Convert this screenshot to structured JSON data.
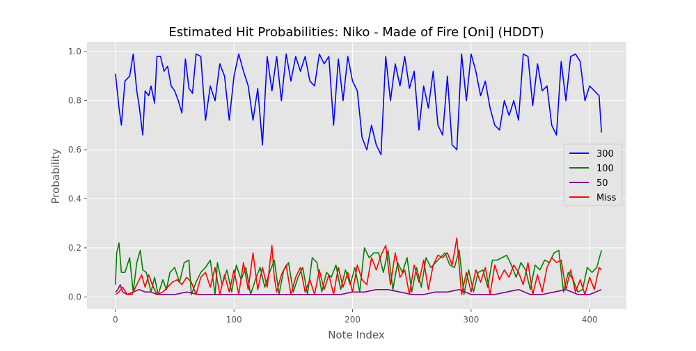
{
  "chart_data": {
    "type": "line",
    "title": "Estimated Hit Probabilities: Niko - Made of Fire [Oni] (HDDT)",
    "xlabel": "Note Index",
    "ylabel": "Probability",
    "xlim": [
      -24,
      431
    ],
    "ylim": [
      -0.05,
      1.04
    ],
    "xticks": [
      0,
      100,
      200,
      300,
      400
    ],
    "yticks": [
      0.0,
      0.2,
      0.4,
      0.6,
      0.8,
      1.0
    ],
    "xtick_labels": [
      "0",
      "100",
      "200",
      "300",
      "400"
    ],
    "ytick_labels": [
      "0.0",
      "0.2",
      "0.4",
      "0.6",
      "0.8",
      "1.0"
    ],
    "grid": true,
    "legend_position": "center-right",
    "background": "#e5e5e5",
    "series": [
      {
        "name": "300",
        "color": "#0000ff",
        "x": [
          0,
          3,
          5,
          8,
          12,
          15,
          18,
          20,
          23,
          25,
          28,
          30,
          33,
          35,
          38,
          41,
          44,
          47,
          50,
          53,
          56,
          59,
          62,
          65,
          68,
          72,
          76,
          80,
          84,
          88,
          92,
          96,
          100,
          104,
          108,
          112,
          116,
          120,
          124,
          128,
          132,
          136,
          140,
          144,
          148,
          152,
          156,
          160,
          164,
          168,
          172,
          176,
          180,
          184,
          188,
          192,
          196,
          200,
          204,
          208,
          212,
          216,
          220,
          224,
          228,
          232,
          236,
          240,
          244,
          248,
          252,
          256,
          260,
          264,
          268,
          272,
          276,
          280,
          284,
          288,
          292,
          296,
          300,
          304,
          308,
          312,
          316,
          320,
          324,
          328,
          332,
          336,
          340,
          344,
          348,
          352,
          356,
          360,
          364,
          368,
          372,
          376,
          380,
          384,
          388,
          392,
          396,
          400,
          404,
          408,
          410
        ],
        "values": [
          0.91,
          0.77,
          0.7,
          0.88,
          0.9,
          0.99,
          0.84,
          0.78,
          0.66,
          0.84,
          0.82,
          0.86,
          0.79,
          0.98,
          0.98,
          0.92,
          0.94,
          0.86,
          0.84,
          0.8,
          0.75,
          0.97,
          0.85,
          0.83,
          0.99,
          0.98,
          0.72,
          0.86,
          0.8,
          0.95,
          0.9,
          0.72,
          0.9,
          0.99,
          0.92,
          0.86,
          0.72,
          0.85,
          0.62,
          0.98,
          0.84,
          0.98,
          0.8,
          0.99,
          0.88,
          0.98,
          0.92,
          0.98,
          0.88,
          0.86,
          0.99,
          0.95,
          0.98,
          0.7,
          0.97,
          0.8,
          0.98,
          0.88,
          0.84,
          0.65,
          0.6,
          0.7,
          0.62,
          0.58,
          0.98,
          0.8,
          0.95,
          0.86,
          0.98,
          0.85,
          0.92,
          0.68,
          0.86,
          0.77,
          0.92,
          0.7,
          0.66,
          0.9,
          0.62,
          0.6,
          0.99,
          0.8,
          0.99,
          0.92,
          0.82,
          0.88,
          0.77,
          0.7,
          0.68,
          0.8,
          0.74,
          0.8,
          0.72,
          0.99,
          0.98,
          0.78,
          0.95,
          0.84,
          0.86,
          0.7,
          0.66,
          0.96,
          0.8,
          0.98,
          0.99,
          0.96,
          0.8,
          0.86,
          0.84,
          0.82,
          0.67
        ]
      },
      {
        "name": "100",
        "color": "#008000",
        "x": [
          0,
          1,
          3,
          5,
          8,
          12,
          15,
          18,
          21,
          23,
          26,
          30,
          33,
          36,
          40,
          43,
          46,
          50,
          54,
          58,
          62,
          64,
          68,
          72,
          76,
          80,
          84,
          86,
          90,
          94,
          98,
          102,
          106,
          110,
          114,
          118,
          122,
          126,
          130,
          134,
          138,
          142,
          146,
          150,
          154,
          158,
          162,
          166,
          170,
          174,
          178,
          182,
          186,
          190,
          194,
          198,
          202,
          206,
          210,
          214,
          218,
          222,
          226,
          230,
          234,
          238,
          242,
          246,
          250,
          254,
          258,
          262,
          266,
          270,
          274,
          278,
          282,
          286,
          290,
          294,
          298,
          302,
          306,
          310,
          314,
          318,
          322,
          326,
          330,
          334,
          338,
          342,
          346,
          350,
          354,
          358,
          362,
          366,
          370,
          374,
          378,
          382,
          386,
          390,
          394,
          398,
          402,
          406,
          410
        ],
        "values": [
          0.05,
          0.18,
          0.22,
          0.1,
          0.1,
          0.16,
          0.02,
          0.14,
          0.19,
          0.11,
          0.1,
          0.02,
          0.08,
          0.01,
          0.07,
          0.03,
          0.1,
          0.12,
          0.06,
          0.14,
          0.15,
          0.01,
          0.06,
          0.1,
          0.12,
          0.15,
          0.01,
          0.14,
          0.05,
          0.11,
          0.02,
          0.13,
          0.07,
          0.12,
          0.01,
          0.07,
          0.12,
          0.04,
          0.1,
          0.15,
          0.01,
          0.11,
          0.14,
          0.02,
          0.08,
          0.12,
          0.01,
          0.16,
          0.14,
          0.02,
          0.1,
          0.08,
          0.13,
          0.03,
          0.11,
          0.05,
          0.12,
          0.02,
          0.2,
          0.16,
          0.18,
          0.18,
          0.1,
          0.19,
          0.03,
          0.14,
          0.1,
          0.16,
          0.02,
          0.12,
          0.04,
          0.16,
          0.12,
          0.14,
          0.16,
          0.18,
          0.13,
          0.12,
          0.19,
          0.01,
          0.11,
          0.02,
          0.1,
          0.11,
          0.04,
          0.15,
          0.15,
          0.16,
          0.17,
          0.13,
          0.08,
          0.14,
          0.11,
          0.03,
          0.13,
          0.11,
          0.15,
          0.14,
          0.18,
          0.19,
          0.02,
          0.1,
          0.07,
          0.02,
          0.03,
          0.12,
          0.1,
          0.12,
          0.19
        ]
      },
      {
        "name": "50",
        "color": "#800080",
        "x": [
          0,
          2,
          4,
          6,
          10,
          15,
          20,
          25,
          30,
          35,
          40,
          50,
          60,
          70,
          80,
          90,
          100,
          110,
          120,
          130,
          140,
          150,
          160,
          170,
          180,
          190,
          200,
          210,
          220,
          230,
          240,
          250,
          260,
          270,
          280,
          290,
          300,
          310,
          320,
          330,
          340,
          350,
          360,
          370,
          380,
          390,
          400,
          410
        ],
        "values": [
          0.02,
          0.03,
          0.05,
          0.02,
          0.01,
          0.02,
          0.03,
          0.02,
          0.02,
          0.01,
          0.01,
          0.01,
          0.02,
          0.01,
          0.01,
          0.01,
          0.01,
          0.01,
          0.01,
          0.01,
          0.01,
          0.01,
          0.01,
          0.01,
          0.01,
          0.01,
          0.02,
          0.02,
          0.03,
          0.03,
          0.02,
          0.01,
          0.01,
          0.02,
          0.02,
          0.03,
          0.01,
          0.01,
          0.01,
          0.02,
          0.03,
          0.01,
          0.01,
          0.02,
          0.03,
          0.01,
          0.01,
          0.03
        ]
      },
      {
        "name": "Miss",
        "color": "#ff0000",
        "x": [
          0,
          3,
          6,
          10,
          14,
          18,
          22,
          25,
          28,
          31,
          35,
          40,
          44,
          48,
          52,
          56,
          60,
          64,
          68,
          72,
          76,
          80,
          84,
          88,
          92,
          96,
          100,
          104,
          108,
          112,
          116,
          120,
          124,
          128,
          132,
          134,
          136,
          140,
          144,
          148,
          152,
          156,
          160,
          164,
          168,
          172,
          176,
          180,
          184,
          188,
          192,
          196,
          200,
          204,
          208,
          212,
          216,
          220,
          224,
          228,
          232,
          236,
          240,
          244,
          248,
          252,
          256,
          260,
          264,
          268,
          272,
          276,
          280,
          284,
          288,
          292,
          296,
          300,
          304,
          308,
          312,
          316,
          320,
          324,
          328,
          332,
          336,
          340,
          344,
          348,
          352,
          356,
          360,
          364,
          368,
          372,
          376,
          380,
          384,
          388,
          392,
          396,
          400,
          404,
          408,
          410
        ],
        "values": [
          0.01,
          0.02,
          0.04,
          0.01,
          0.01,
          0.05,
          0.09,
          0.04,
          0.09,
          0.05,
          0.01,
          0.02,
          0.04,
          0.06,
          0.07,
          0.05,
          0.08,
          0.06,
          0.01,
          0.08,
          0.1,
          0.04,
          0.12,
          0.01,
          0.09,
          0.02,
          0.11,
          0.01,
          0.14,
          0.03,
          0.18,
          0.03,
          0.12,
          0.04,
          0.21,
          0.08,
          0.02,
          0.09,
          0.13,
          0.01,
          0.08,
          0.12,
          0.02,
          0.07,
          0.01,
          0.11,
          0.03,
          0.09,
          0.01,
          0.12,
          0.04,
          0.1,
          0.02,
          0.13,
          0.07,
          0.05,
          0.16,
          0.11,
          0.17,
          0.21,
          0.05,
          0.18,
          0.08,
          0.11,
          0.01,
          0.13,
          0.06,
          0.15,
          0.03,
          0.13,
          0.17,
          0.16,
          0.18,
          0.13,
          0.24,
          0.01,
          0.1,
          0.02,
          0.11,
          0.06,
          0.12,
          0.01,
          0.13,
          0.07,
          0.11,
          0.08,
          0.13,
          0.1,
          0.05,
          0.14,
          0.01,
          0.09,
          0.02,
          0.12,
          0.16,
          0.14,
          0.15,
          0.03,
          0.11,
          0.02,
          0.07,
          0.01,
          0.08,
          0.03,
          0.12,
          0.11
        ]
      }
    ]
  }
}
